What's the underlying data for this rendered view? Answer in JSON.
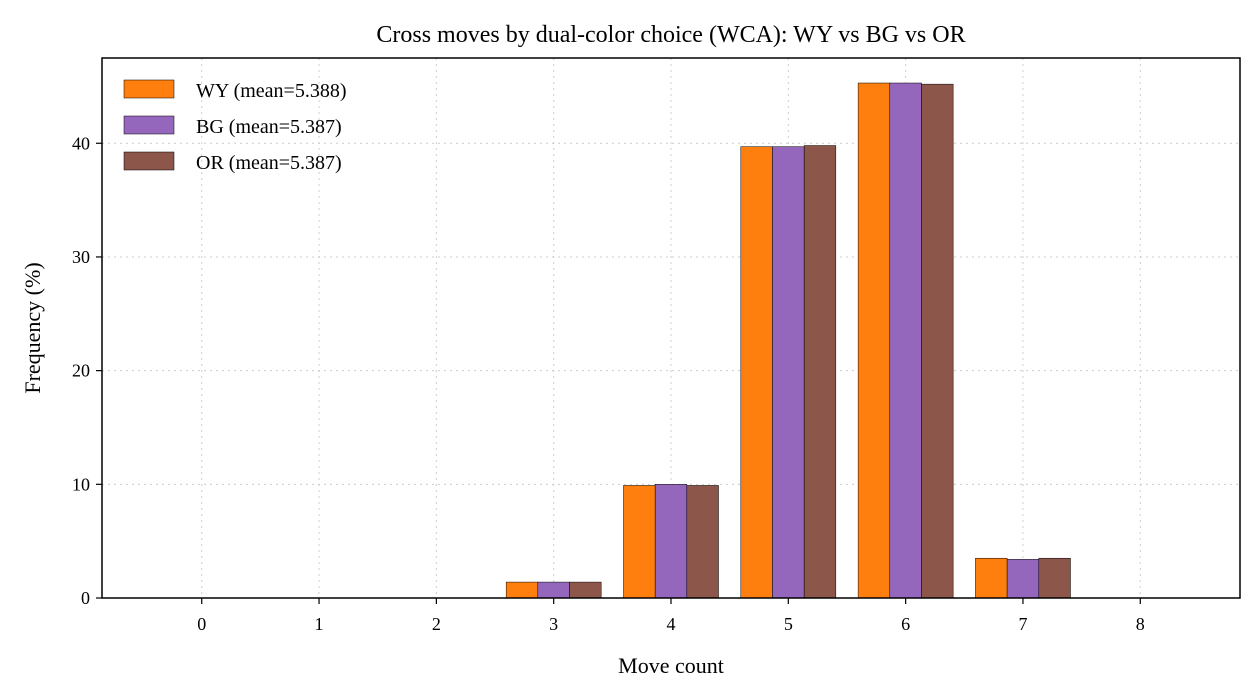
{
  "chart_data": {
    "type": "bar",
    "title": "Cross moves by dual-color choice (WCA): WY vs BG vs OR",
    "xlabel": "Move count",
    "ylabel": "Frequency (%)",
    "categories": [
      "0",
      "1",
      "2",
      "3",
      "4",
      "5",
      "6",
      "7",
      "8"
    ],
    "x_range": [
      -0.85,
      8.85
    ],
    "ylim": [
      0,
      47.5
    ],
    "yticks": [
      0,
      10,
      20,
      30,
      40
    ],
    "grid": true,
    "legend_position": "top-left",
    "series": [
      {
        "name": "WY (mean=5.388)",
        "color": "#ff7f0e",
        "values": [
          0,
          0,
          0,
          1.4,
          9.9,
          39.7,
          45.3,
          3.5,
          0
        ]
      },
      {
        "name": "BG (mean=5.387)",
        "color": "#9467bd",
        "values": [
          0,
          0,
          0,
          1.4,
          10.0,
          39.7,
          45.3,
          3.4,
          0
        ]
      },
      {
        "name": "OR (mean=5.387)",
        "color": "#8c564b",
        "values": [
          0,
          0,
          0,
          1.4,
          9.9,
          39.8,
          45.2,
          3.5,
          0
        ]
      }
    ]
  }
}
